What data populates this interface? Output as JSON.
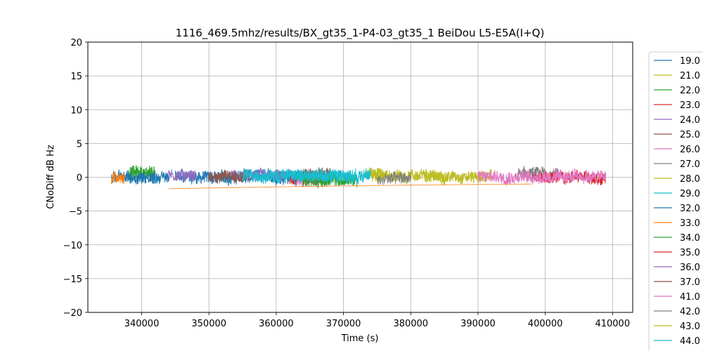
{
  "chart_data": {
    "type": "line",
    "title": "1116_469.5mhz/results/BX_gt35_1-P4-03_gt35_1 BeiDou L5-E5A(I+Q)",
    "xlabel": "Time (s)",
    "ylabel": "CNoDiff dB Hz",
    "xlim": [
      332000,
      413000
    ],
    "ylim": [
      -20,
      20
    ],
    "xticks": [
      340000,
      350000,
      360000,
      370000,
      380000,
      390000,
      400000,
      410000
    ],
    "xtick_labels": [
      "340000",
      "350000",
      "360000",
      "370000",
      "380000",
      "390000",
      "400000",
      "410000"
    ],
    "yticks": [
      -20,
      -15,
      -10,
      -5,
      0,
      5,
      10,
      15,
      20
    ],
    "ytick_labels": [
      "−20",
      "−15",
      "−10",
      "−5",
      "0",
      "5",
      "10",
      "15",
      "20"
    ],
    "grid": true,
    "legend_placement": "right-outside",
    "series": [
      {
        "name": "19.0",
        "color": "#1f77b4",
        "x_range": [
          345000,
          365000
        ],
        "mean": 0.0,
        "noise": 0.9
      },
      {
        "name": "21.0",
        "color": "#bcbd22",
        "x_range": [
          374000,
          385000
        ],
        "mean": 0.2,
        "noise": 0.8
      },
      {
        "name": "22.0",
        "color": "#2ca02c",
        "x_range": [
          338000,
          342000
        ],
        "mean": 0.5,
        "noise": 1.1
      },
      {
        "name": "23.0",
        "color": "#d62728",
        "x_range": [
          362000,
          366000
        ],
        "mean": -0.3,
        "noise": 0.8
      },
      {
        "name": "24.0",
        "color": "#9467bd",
        "x_range": [
          344000,
          348000
        ],
        "mean": 0.3,
        "noise": 0.8
      },
      {
        "name": "25.0",
        "color": "#8c564b",
        "x_range": [
          364000,
          368000
        ],
        "mean": 0.4,
        "noise": 0.8
      },
      {
        "name": "26.0",
        "color": "#e377c2",
        "x_range": [
          363000,
          368000
        ],
        "mean": -0.6,
        "noise": 0.9
      },
      {
        "name": "27.0",
        "color": "#7f7f7f",
        "x_range": [
          396000,
          402000
        ],
        "mean": 0.4,
        "noise": 1.0
      },
      {
        "name": "28.0",
        "color": "#bcbd22",
        "x_range": [
          382000,
          392000
        ],
        "mean": 0.1,
        "noise": 0.8
      },
      {
        "name": "29.0",
        "color": "#17becf",
        "x_range": [
          358000,
          372000
        ],
        "mean": 0.3,
        "noise": 0.8
      },
      {
        "name": "32.0",
        "color": "#1f77b4",
        "x_range": [
          335500,
          344000
        ],
        "mean": 0.0,
        "noise": 0.9
      },
      {
        "name": "33.0",
        "color": "#ff7f0e",
        "x_range": [
          335500,
          337500
        ],
        "mean": -0.2,
        "noise": 0.8
      },
      {
        "name": "34.0",
        "color": "#2ca02c",
        "x_range": [
          364000,
          372000
        ],
        "mean": -0.5,
        "noise": 0.8
      },
      {
        "name": "35.0",
        "color": "#d62728",
        "x_range": [
          398000,
          409000
        ],
        "mean": 0.0,
        "noise": 0.8
      },
      {
        "name": "36.0",
        "color": "#9467bd",
        "x_range": [
          353000,
          362000
        ],
        "mean": 0.4,
        "noise": 0.7
      },
      {
        "name": "37.0",
        "color": "#8c564b",
        "x_range": [
          350000,
          356000
        ],
        "mean": 0.1,
        "noise": 0.8
      },
      {
        "name": "41.0",
        "color": "#e377c2",
        "x_range": [
          390000,
          409000
        ],
        "mean": 0.1,
        "noise": 0.9
      },
      {
        "name": "42.0",
        "color": "#7f7f7f",
        "x_range": [
          375000,
          380000
        ],
        "mean": -0.2,
        "noise": 0.9
      },
      {
        "name": "43.0",
        "color": "#bcbd22",
        "x_range": [
          373500,
          376000
        ],
        "mean": 0.5,
        "noise": 0.9
      },
      {
        "name": "44.0",
        "color": "#17becf",
        "x_range": [
          355000,
          374000
        ],
        "mean": 0.2,
        "noise": 0.9
      }
    ]
  }
}
